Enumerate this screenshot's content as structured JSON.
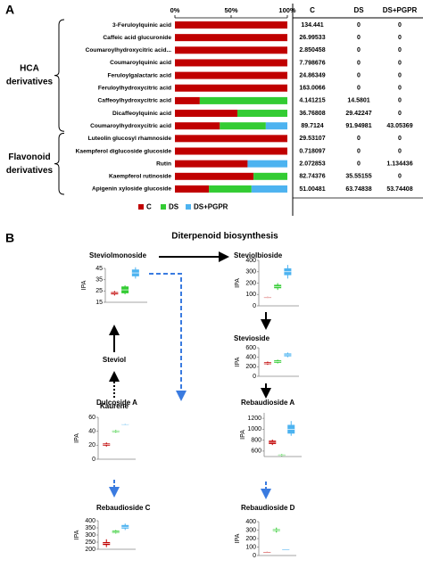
{
  "panel_a": {
    "label": "A",
    "axis_ticks": [
      {
        "value": 0,
        "label": "0%"
      },
      {
        "value": 50,
        "label": "50%"
      },
      {
        "value": 100,
        "label": "100%"
      }
    ],
    "columns": [
      "C",
      "DS",
      "DS+PGPR"
    ],
    "colors": [
      "#c00000",
      "#33cc33",
      "#4db3f0"
    ],
    "groups": [
      {
        "label": [
          "HCA",
          "derivatives"
        ],
        "rows": [
          {
            "name": "3-Feruloylquinic acid",
            "values": [
              134.441,
              0,
              0
            ]
          },
          {
            "name": "Caffeic acid glucuronide",
            "values": [
              26.99533,
              0,
              0
            ]
          },
          {
            "name": "Coumaroylhydroxycitric acid...",
            "values": [
              2.850458,
              0,
              0
            ]
          },
          {
            "name": "Coumaroylquinic acid",
            "values": [
              7.798676,
              0,
              0
            ]
          },
          {
            "name": "Feruloylgalactaric acid",
            "values": [
              24.86349,
              0,
              0
            ]
          },
          {
            "name": "Feruloylhydroxycitric acid",
            "values": [
              163.0066,
              0,
              0
            ]
          },
          {
            "name": "Caffeoylhydroxycitric acid",
            "values": [
              4.141215,
              14.5801,
              0
            ]
          },
          {
            "name": "Dicaffeoylquinic acid",
            "values": [
              36.76808,
              29.42247,
              0
            ]
          },
          {
            "name": "Coumaroylhydroxycitric acid",
            "values": [
              89.7124,
              91.94981,
              43.05369
            ]
          }
        ]
      },
      {
        "label": [
          "Flavonoid",
          "derivatives"
        ],
        "rows": [
          {
            "name": "Luteolin glucosyl rhamnoside",
            "values": [
              29.53107,
              0,
              0
            ]
          },
          {
            "name": "Kaempferol diglucoside glucoside",
            "values": [
              0.718097,
              0,
              0
            ]
          },
          {
            "name": "Rutin",
            "values": [
              2.072853,
              0,
              1.134436
            ]
          },
          {
            "name": "Kaempferol rutinoside",
            "values": [
              82.74376,
              35.55155,
              0
            ]
          },
          {
            "name": "Apigenin xyloside glucoside",
            "values": [
              51.00481,
              63.74838,
              53.74408
            ]
          }
        ]
      }
    ]
  },
  "panel_b": {
    "label": "B",
    "title": "Diterpenoid biosynthesis",
    "precursors": [
      "Steviol",
      "Kaurene"
    ],
    "y_label": "IPA",
    "colors": [
      "#c00000",
      "#33cc33",
      "#4db3f0"
    ],
    "charts": [
      {
        "title": "Steviolmonoside",
        "ylim": [
          15,
          45
        ],
        "yticks": [
          15,
          25,
          35,
          45
        ],
        "boxes": [
          {
            "min": 21,
            "q1": 22,
            "median": 23,
            "q3": 24,
            "max": 25
          },
          {
            "min": 22,
            "q1": 23,
            "median": 26,
            "q3": 29,
            "max": 30
          },
          {
            "min": 36,
            "q1": 38,
            "median": 41,
            "q3": 44,
            "max": 46
          }
        ]
      },
      {
        "title": "Steviolbioside",
        "ylim": [
          0,
          400
        ],
        "yticks": [
          0,
          100,
          200,
          300,
          400
        ],
        "boxes": [
          {
            "min": 70,
            "q1": 72,
            "median": 75,
            "q3": 78,
            "max": 80
          },
          {
            "min": 140,
            "q1": 155,
            "median": 170,
            "q3": 185,
            "max": 200
          },
          {
            "min": 240,
            "q1": 270,
            "median": 300,
            "q3": 330,
            "max": 360
          }
        ]
      },
      {
        "title": "Stevioside",
        "ylim": [
          0,
          600
        ],
        "yticks": [
          0,
          200,
          400,
          600
        ],
        "boxes": [
          {
            "min": 240,
            "q1": 255,
            "median": 275,
            "q3": 295,
            "max": 310
          },
          {
            "min": 270,
            "q1": 285,
            "median": 310,
            "q3": 335,
            "max": 350
          },
          {
            "min": 400,
            "q1": 420,
            "median": 450,
            "q3": 480,
            "max": 500
          }
        ]
      },
      {
        "title": "Dulcoside A",
        "ylim": [
          0,
          60
        ],
        "yticks": [
          0,
          20,
          40,
          60
        ],
        "boxes": [
          {
            "min": 18,
            "q1": 19.5,
            "median": 21,
            "q3": 22.5,
            "max": 24
          },
          {
            "min": 38,
            "q1": 39,
            "median": 40,
            "q3": 41,
            "max": 42
          },
          {
            "min": 49,
            "q1": 49.5,
            "median": 50,
            "q3": 50.5,
            "max": 51
          }
        ]
      },
      {
        "title": "Rebaudioside A",
        "ylim": [
          500,
          1300
        ],
        "yticks": [
          600,
          800,
          1000,
          1200
        ],
        "boxes": [
          {
            "min": 710,
            "q1": 730,
            "median": 760,
            "q3": 790,
            "max": 810
          },
          {
            "min": 505,
            "q1": 515,
            "median": 525,
            "q3": 535,
            "max": 545
          },
          {
            "min": 880,
            "q1": 920,
            "median": 1000,
            "q3": 1080,
            "max": 1150
          }
        ]
      },
      {
        "title": "Rebaudioside C",
        "ylim": [
          200,
          400
        ],
        "yticks": [
          200,
          250,
          300,
          350,
          400
        ],
        "boxes": [
          {
            "min": 215,
            "q1": 230,
            "median": 240,
            "q3": 250,
            "max": 270
          },
          {
            "min": 310,
            "q1": 315,
            "median": 320,
            "q3": 330,
            "max": 335
          },
          {
            "min": 335,
            "q1": 345,
            "median": 355,
            "q3": 370,
            "max": 380
          }
        ]
      },
      {
        "title": "Rebaudioside D",
        "ylim": [
          0,
          400
        ],
        "yticks": [
          0,
          100,
          200,
          300,
          400
        ],
        "boxes": [
          {
            "min": 35,
            "q1": 38,
            "median": 40,
            "q3": 42,
            "max": 45
          },
          {
            "min": 270,
            "q1": 290,
            "median": 300,
            "q3": 310,
            "max": 330
          },
          {
            "min": 72,
            "q1": 74,
            "median": 75,
            "q3": 76,
            "max": 78
          }
        ]
      }
    ]
  }
}
